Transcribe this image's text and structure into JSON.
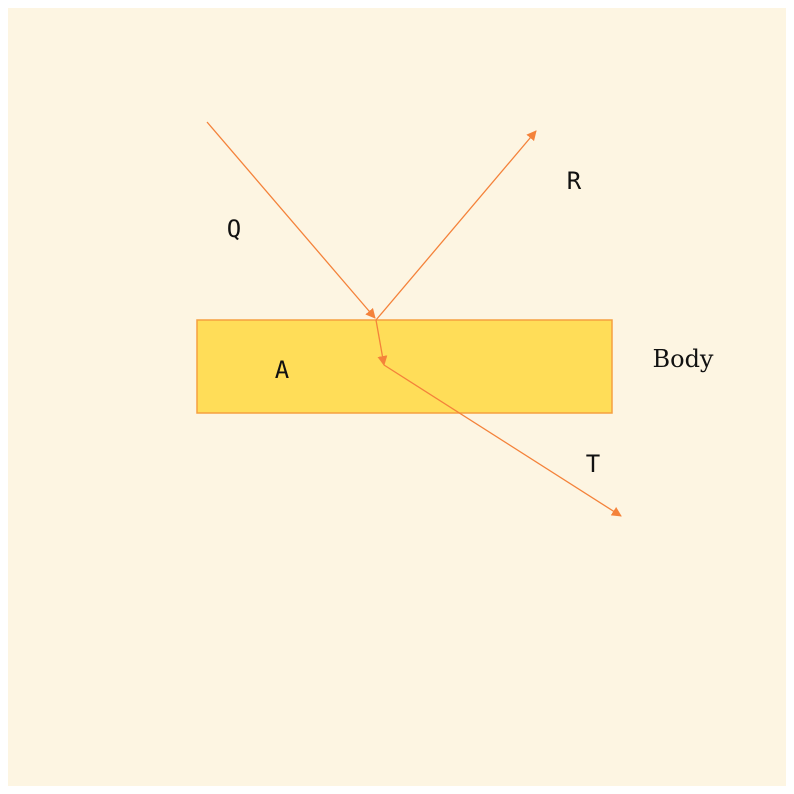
{
  "diagram": {
    "labels": {
      "incident": "Q",
      "reflected": "R",
      "absorbed": "A",
      "transmitted": "T",
      "body": "Body"
    },
    "colors": {
      "background": "#fdf5e2",
      "body_fill": "#ffdd58",
      "body_stroke": "#f6a03f",
      "ray": "#f4823a"
    }
  }
}
